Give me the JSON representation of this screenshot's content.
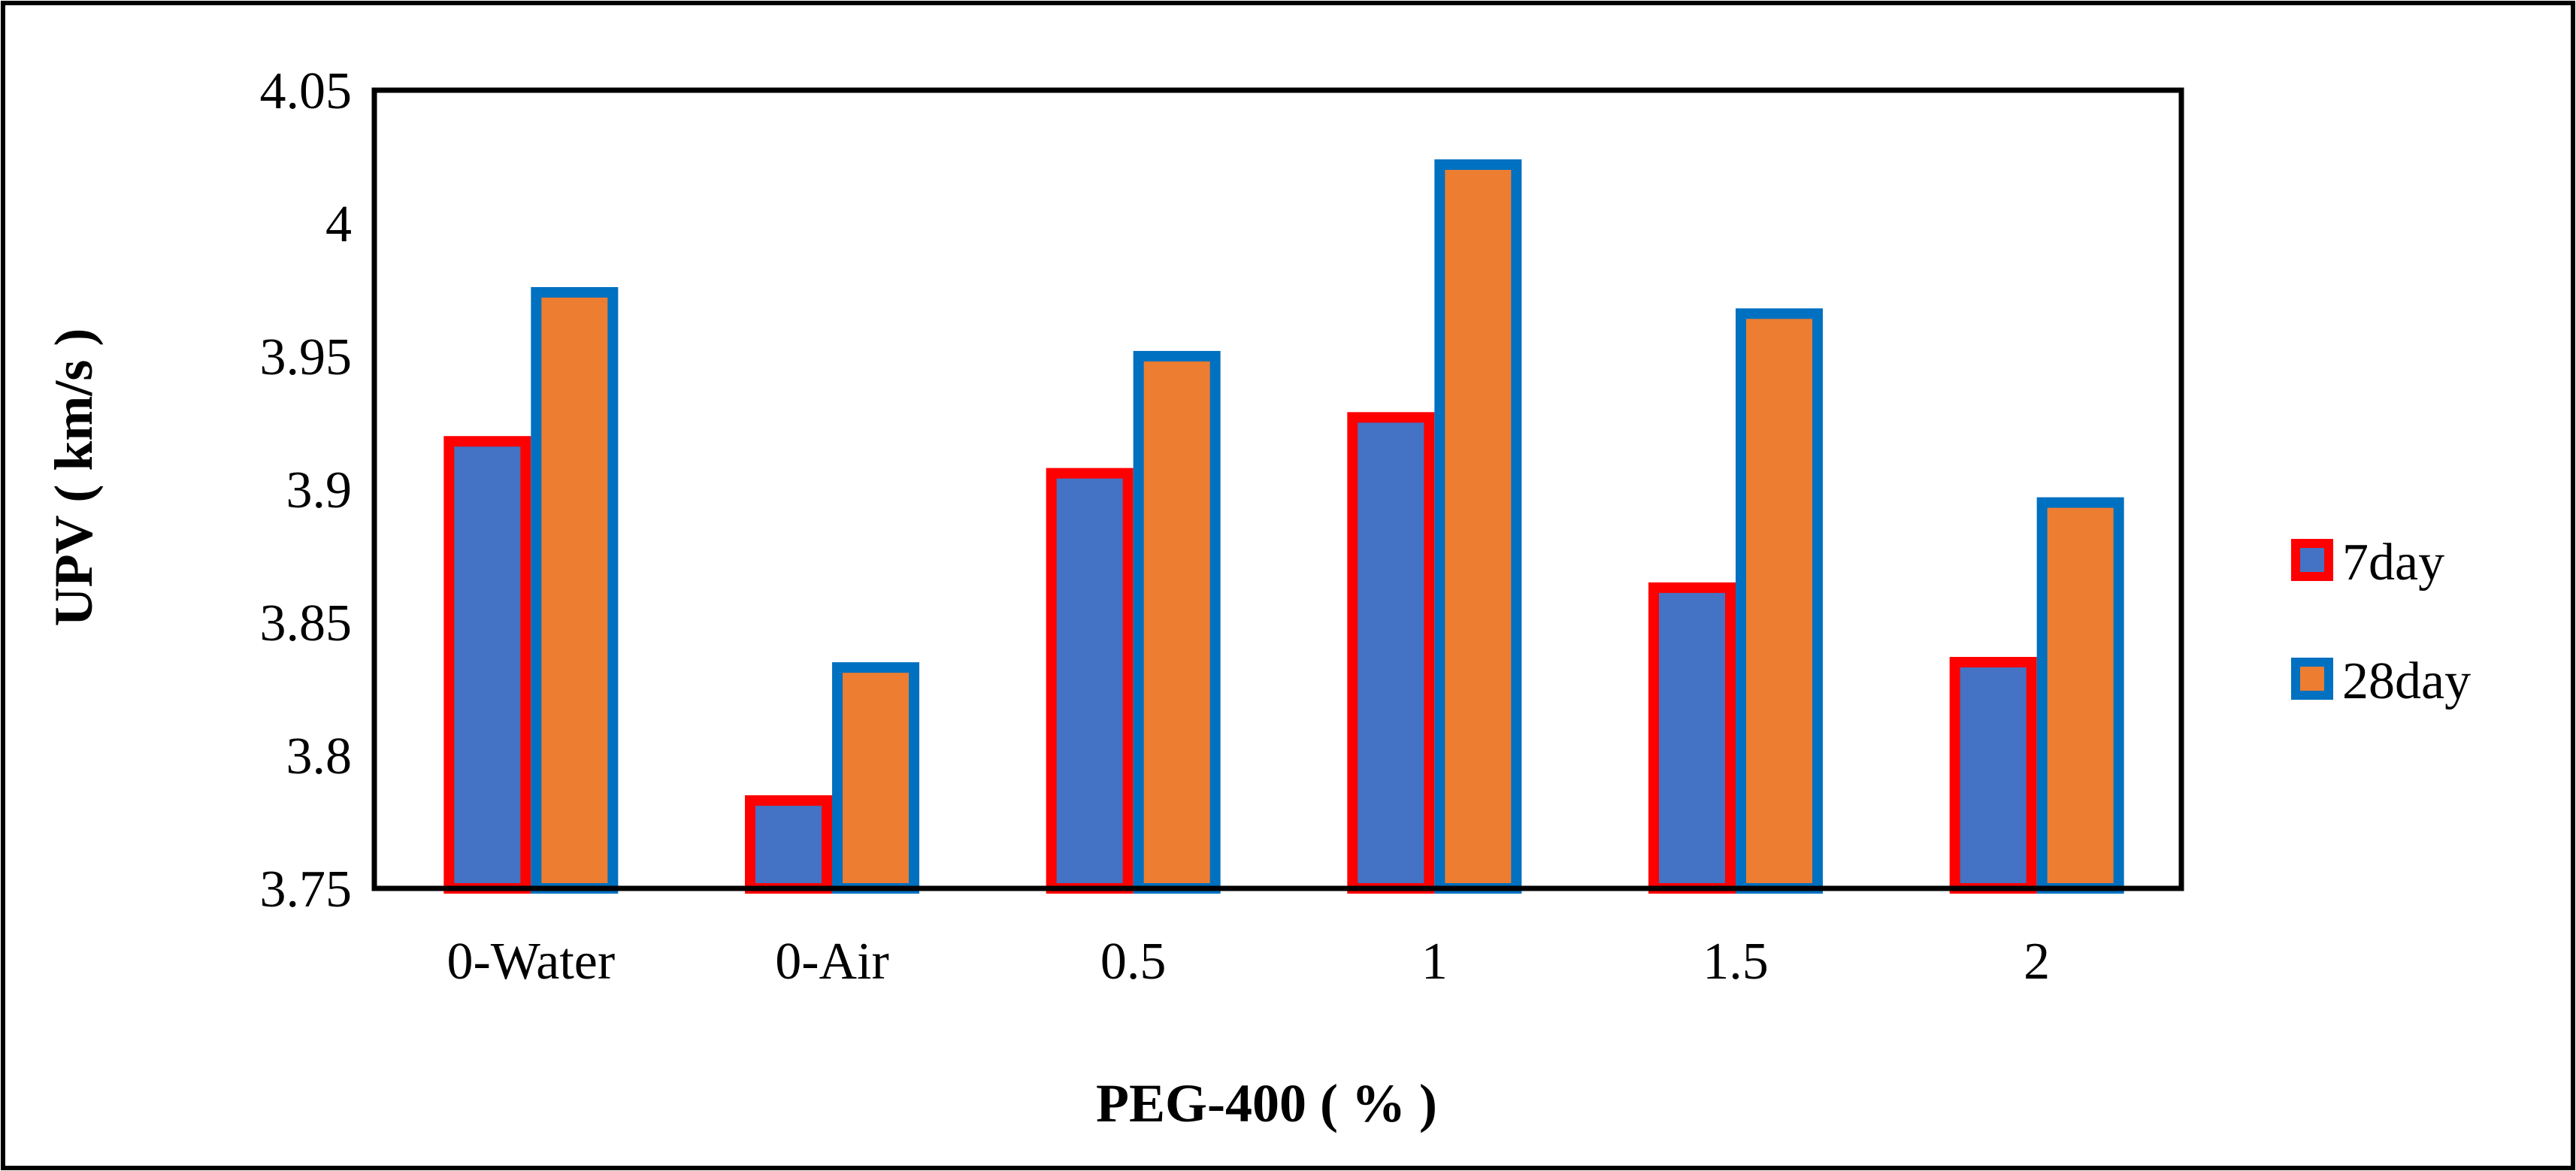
{
  "chart_data": {
    "type": "bar",
    "title": "",
    "xlabel": "PEG-400 ( % )",
    "ylabel": "UPV ( km/s )",
    "categories": [
      "0-Water",
      "0-Air",
      "0.5",
      "1",
      "1.5",
      "2"
    ],
    "series": [
      {
        "name": "7day",
        "values": [
          3.92,
          3.785,
          3.908,
          3.929,
          3.865,
          3.837
        ],
        "fill": "#4472C4",
        "stroke": "#FF0000"
      },
      {
        "name": "28day",
        "values": [
          3.976,
          3.835,
          3.952,
          4.024,
          3.968,
          3.897
        ],
        "fill": "#ED7D31",
        "stroke": "#0070C0"
      }
    ],
    "ylim": [
      3.75,
      4.05
    ],
    "yticks": [
      3.75,
      3.8,
      3.85,
      3.9,
      3.95,
      4,
      4.05
    ],
    "ytick_labels": [
      "3.75",
      "3.8",
      "3.85",
      "3.9",
      "3.95",
      "4",
      "4.05"
    ],
    "grid": false,
    "legend_position": "right"
  }
}
